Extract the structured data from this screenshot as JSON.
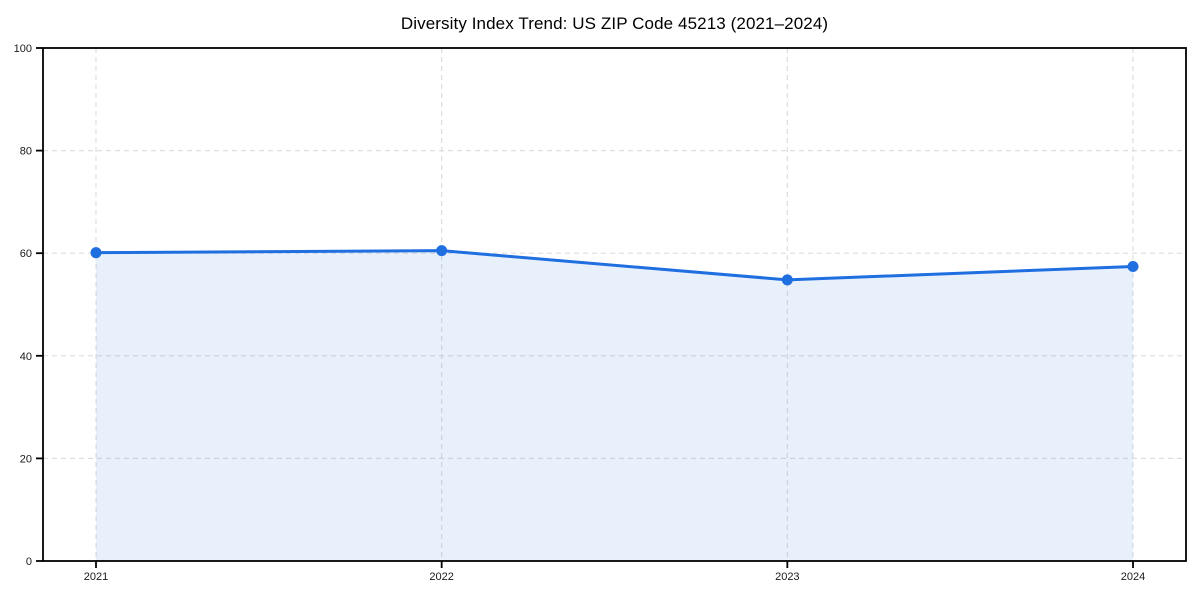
{
  "title": "Diversity Index Trend: US ZIP Code 45213 (2021–2024)",
  "colors": {
    "line": "#1f6fe0",
    "fill": "rgba(31,111,224,0.10)",
    "grid": "#dedede",
    "axis": "#000000",
    "tick_label": "#1a1a1a",
    "background": "#ffffff"
  },
  "chart_data": {
    "type": "line",
    "title": "Diversity Index Trend: US ZIP Code 45213 (2021–2024)",
    "categories": [
      "2021",
      "2022",
      "2023",
      "2024"
    ],
    "series": [
      {
        "name": "Diversity Index",
        "values": [
          60.1,
          60.5,
          54.8,
          57.4
        ]
      }
    ],
    "xlabel": "",
    "ylabel": "",
    "ylim": [
      0,
      100
    ],
    "y_ticks": [
      0,
      20,
      40,
      60,
      80,
      100
    ],
    "grid": "dashed horizontal and vertical",
    "legend": "none",
    "marker": "circle",
    "area_fill": true
  }
}
